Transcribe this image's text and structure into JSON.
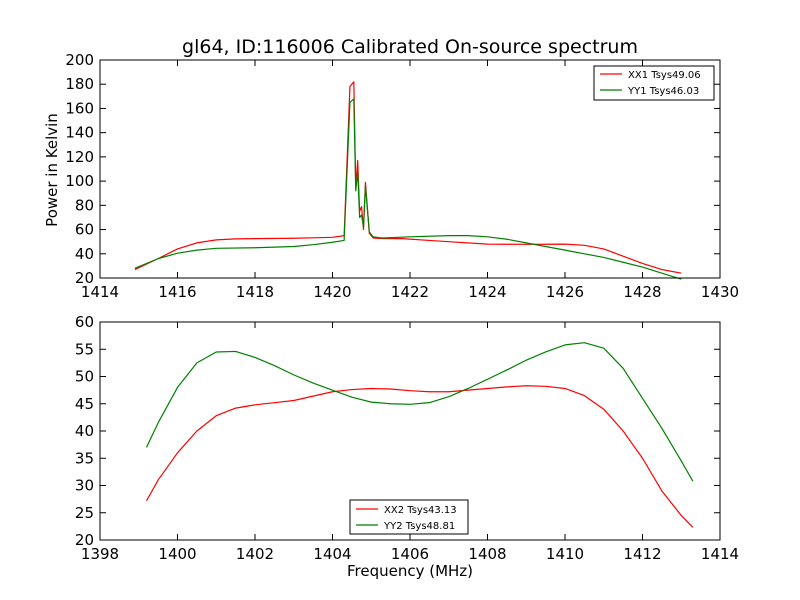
{
  "chart_data": [
    {
      "type": "line",
      "title": "gl64, ID:116006 Calibrated On-source spectrum",
      "xlabel": "",
      "ylabel": "Power in Kelvin",
      "xlim": [
        1414,
        1430
      ],
      "ylim": [
        20,
        200
      ],
      "xticks": [
        "1414",
        "1416",
        "1418",
        "1420",
        "1422",
        "1424",
        "1426",
        "1428",
        "1430"
      ],
      "yticks": [
        "20",
        "40",
        "60",
        "80",
        "100",
        "120",
        "140",
        "160",
        "180",
        "200"
      ],
      "legend_position": "top-right",
      "series": [
        {
          "name": "XX1 Tsys49.06",
          "color": "#ff0000",
          "x": [
            1414.9,
            1415.5,
            1416.0,
            1416.5,
            1417.0,
            1417.5,
            1418.0,
            1419.0,
            1419.5,
            1420.0,
            1420.3,
            1420.45,
            1420.55,
            1420.6,
            1420.65,
            1420.7,
            1420.75,
            1420.8,
            1420.85,
            1420.95,
            1421.05,
            1421.3,
            1421.8,
            1422.5,
            1423.0,
            1424.0,
            1425.0,
            1426.0,
            1426.5,
            1427.0,
            1427.5,
            1428.0,
            1428.5,
            1429.0
          ],
          "y": [
            27,
            36,
            44,
            49,
            51.5,
            52.3,
            52.5,
            52.8,
            53.2,
            53.6,
            55,
            178,
            182,
            95,
            117,
            75,
            79,
            60,
            99,
            57,
            53,
            52.5,
            52.5,
            51,
            50,
            48,
            47.8,
            48,
            47,
            44,
            38,
            32,
            27,
            24
          ]
        },
        {
          "name": "YY1 Tsys46.03",
          "color": "#008000",
          "x": [
            1414.9,
            1415.5,
            1416.0,
            1416.5,
            1417.0,
            1418.0,
            1419.0,
            1419.5,
            1420.0,
            1420.3,
            1420.45,
            1420.55,
            1420.6,
            1420.65,
            1420.7,
            1420.75,
            1420.8,
            1420.85,
            1420.95,
            1421.05,
            1421.3,
            1422.0,
            1423.0,
            1423.5,
            1424.0,
            1424.5,
            1425.0,
            1425.5,
            1426.0,
            1426.5,
            1427.0,
            1427.5,
            1428.0,
            1428.5,
            1429.0
          ],
          "y": [
            28,
            36,
            40.5,
            43,
            44.5,
            45,
            46,
            47.5,
            49.5,
            51,
            165,
            168,
            92,
            108,
            70,
            72,
            62,
            96,
            58,
            54,
            53,
            54,
            55,
            55,
            54,
            52,
            49,
            46,
            43,
            40,
            37,
            33,
            29,
            24,
            19
          ]
        }
      ]
    },
    {
      "type": "line",
      "title": "",
      "xlabel": "Frequency (MHz)",
      "ylabel": "",
      "xlim": [
        1398,
        1414
      ],
      "ylim": [
        20,
        60
      ],
      "xticks": [
        "1398",
        "1400",
        "1402",
        "1404",
        "1406",
        "1408",
        "1410",
        "1412",
        "1414"
      ],
      "yticks": [
        "20",
        "25",
        "30",
        "35",
        "40",
        "45",
        "50",
        "55",
        "60"
      ],
      "legend_position": "bottom-center",
      "series": [
        {
          "name": "XX2 Tsys43.13",
          "color": "#ff0000",
          "x": [
            1399.2,
            1399.5,
            1400.0,
            1400.5,
            1401.0,
            1401.5,
            1402.0,
            1402.5,
            1403.0,
            1403.5,
            1404.0,
            1404.5,
            1405.0,
            1405.5,
            1406.0,
            1406.5,
            1407.0,
            1407.5,
            1408.0,
            1408.5,
            1409.0,
            1409.5,
            1410.0,
            1410.5,
            1411.0,
            1411.5,
            1412.0,
            1412.5,
            1413.0,
            1413.3
          ],
          "y": [
            27.2,
            31,
            36,
            40,
            42.8,
            44.2,
            44.8,
            45.2,
            45.6,
            46.4,
            47.2,
            47.6,
            47.8,
            47.7,
            47.4,
            47.2,
            47.2,
            47.5,
            47.8,
            48.1,
            48.3,
            48.2,
            47.8,
            46.5,
            44,
            40,
            35,
            29,
            24.5,
            22.3
          ]
        },
        {
          "name": "YY2 Tsys48.81",
          "color": "#008000",
          "x": [
            1399.2,
            1399.5,
            1400.0,
            1400.5,
            1401.0,
            1401.5,
            1402.0,
            1402.5,
            1403.0,
            1403.5,
            1404.0,
            1404.5,
            1405.0,
            1405.5,
            1406.0,
            1406.5,
            1407.0,
            1407.5,
            1408.0,
            1408.5,
            1409.0,
            1409.5,
            1410.0,
            1410.5,
            1411.0,
            1411.5,
            1412.0,
            1412.5,
            1413.0,
            1413.3
          ],
          "y": [
            37,
            41.5,
            48,
            52.5,
            54.5,
            54.6,
            53.5,
            52,
            50.3,
            48.8,
            47.5,
            46.2,
            45.3,
            45,
            44.9,
            45.2,
            46.3,
            47.8,
            49.5,
            51.2,
            53,
            54.5,
            55.8,
            56.2,
            55.2,
            51.5,
            46,
            40.5,
            34.5,
            30.8
          ]
        }
      ]
    }
  ]
}
